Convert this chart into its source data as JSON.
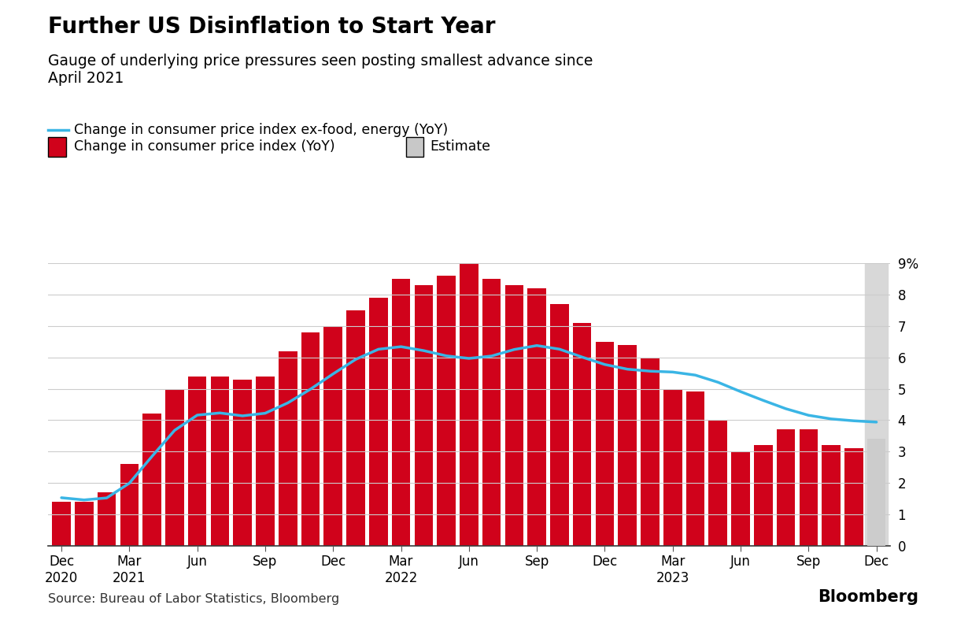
{
  "title": "Further US Disinflation to Start Year",
  "subtitle": "Gauge of underlying price pressures seen posting smallest advance since\nApril 2021",
  "source": "Source: Bureau of Labor Statistics, Bloomberg",
  "legend_line": "Change in consumer price index ex-food, energy (YoY)",
  "legend_bar": "Change in consumer price index (YoY)",
  "legend_estimate": "Estimate",
  "background_color": "#ffffff",
  "bar_color": "#d0021b",
  "estimate_color": "#cccccc",
  "line_color": "#3ab5e5",
  "ylim": [
    0,
    9
  ],
  "yticks": [
    0,
    1,
    2,
    3,
    4,
    5,
    6,
    7,
    8,
    9
  ],
  "ytick_labels": [
    "0",
    "1",
    "2",
    "3",
    "4",
    "5",
    "6",
    "7",
    "8",
    "9%"
  ],
  "cpi_values": [
    1.4,
    1.4,
    1.7,
    2.6,
    4.2,
    5.0,
    5.4,
    5.4,
    5.3,
    5.4,
    6.2,
    6.8,
    7.0,
    7.5,
    7.9,
    8.5,
    8.3,
    8.6,
    9.1,
    8.5,
    8.3,
    8.2,
    7.7,
    7.1,
    6.5,
    6.4,
    6.0,
    5.0,
    4.9,
    4.0,
    3.0,
    3.2,
    3.7,
    3.7,
    3.2,
    3.1,
    3.4
  ],
  "core_cpi_values": [
    1.6,
    1.4,
    1.3,
    1.6,
    3.0,
    3.8,
    4.5,
    4.3,
    4.0,
    4.0,
    4.6,
    4.9,
    5.5,
    6.0,
    6.4,
    6.5,
    6.2,
    6.0,
    5.9,
    5.9,
    6.3,
    6.6,
    6.3,
    6.0,
    5.7,
    5.6,
    5.5,
    5.6,
    5.5,
    5.3,
    4.8,
    4.7,
    4.3,
    4.1,
    4.0,
    4.0,
    3.9
  ],
  "xtick_positions": [
    0,
    3,
    6,
    9,
    12,
    15,
    18,
    21,
    24,
    27,
    30,
    33,
    36
  ],
  "xtick_labels": [
    "Dec\n2020",
    "Mar\n2021",
    "Jun",
    "Sep",
    "Dec",
    "Mar\n2022",
    "Jun",
    "Sep",
    "Dec",
    "Mar\n2023",
    "Jun",
    "Sep",
    "Dec"
  ]
}
